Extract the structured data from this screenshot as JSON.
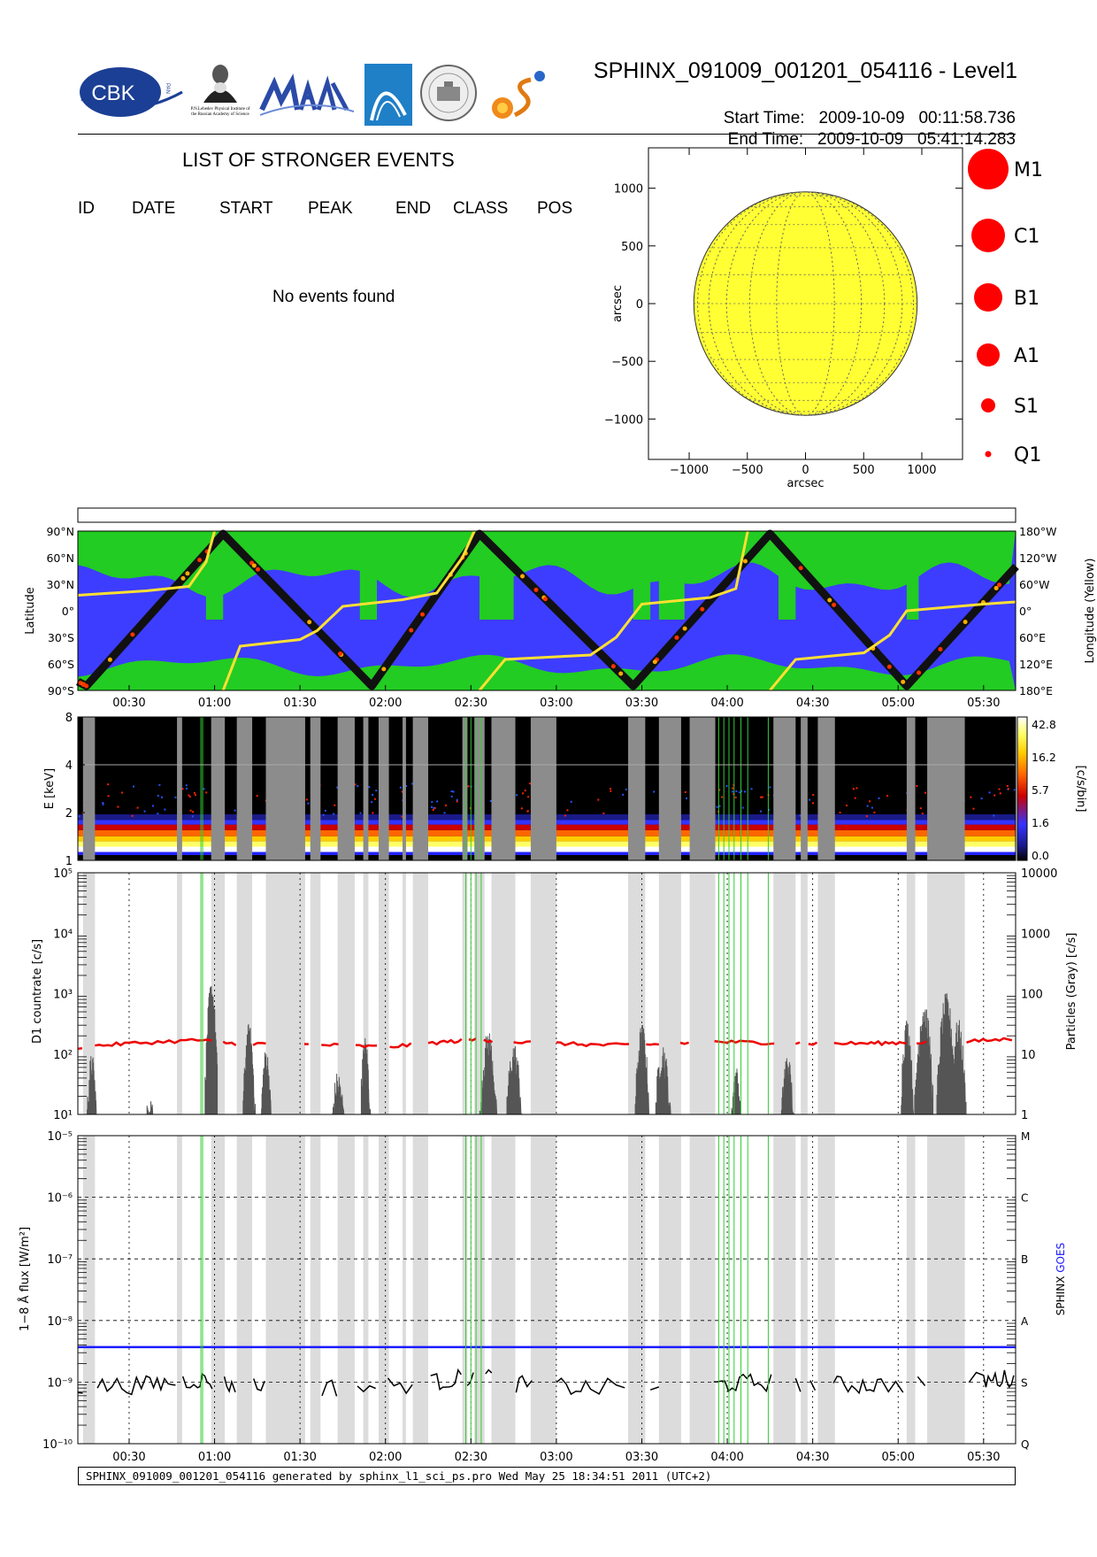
{
  "header": {
    "title": "SPHINX_091009_001201_054116 - Level1",
    "start_label": "Start Time:",
    "start_value": "2009-10-09   00:11:58.736",
    "end_label": "End Time:",
    "end_value": "2009-10-09   05:41:14.283",
    "logo_cbk": "CBK",
    "logo_cbk_sub": "PAN",
    "logo_lebedev_caption": "P.N.Lebedev Physical Institute of the Russian Academy of Science"
  },
  "events": {
    "title": "LIST OF STRONGER EVENTS",
    "columns": [
      "ID",
      "DATE",
      "START",
      "PEAK",
      "END",
      "CLASS",
      "POS"
    ],
    "empty_message": "No events found"
  },
  "colors": {
    "sun": "#ffff33",
    "event_dot": "#ff0000",
    "map_blue": "#3d3dff",
    "map_green": "#22cc22",
    "goes": "#1a1aff",
    "red_series": "#ee0000",
    "gray_band": "#dcdcdc",
    "green_line": "#33cc33"
  },
  "chart_data": [
    {
      "type": "scatter",
      "name": "solar-disk",
      "xlabel": "arcsec",
      "ylabel": "arcsec",
      "xlim": [
        -1350,
        1350
      ],
      "ylim": [
        -1350,
        1350
      ],
      "xticks": [
        -1000,
        -500,
        0,
        500,
        1000
      ],
      "yticks": [
        1000,
        500,
        0,
        -500,
        -1000
      ],
      "tick_labels_x": [
        "−1000",
        "−500",
        "0",
        "500",
        "1000"
      ],
      "tick_labels_y": [
        "1000",
        "500",
        "0",
        "−500",
        "−1000"
      ],
      "sun_radius": 960,
      "legend": [
        "M1",
        "C1",
        "B1",
        "A1",
        "S1",
        "Q1"
      ],
      "events": []
    },
    {
      "type": "line",
      "name": "orbit-latitude",
      "ylabel": "Latitude",
      "ylabel_right": "Longitude (Yellow)",
      "ylim": [
        -90,
        90
      ],
      "yticks_left": [
        "90°N",
        "60°N",
        "30°N",
        "0°",
        "30°S",
        "60°S",
        "90°S"
      ],
      "yticks_right": [
        "180°W",
        "120°W",
        "60°W",
        "0°",
        "60°E",
        "120°E",
        "180°E"
      ],
      "xticks": [
        "00:30",
        "01:00",
        "01:30",
        "02:00",
        "02:30",
        "03:00",
        "03:30",
        "04:00",
        "04:30",
        "05:00",
        "05:30"
      ],
      "xtick_hours": [
        0.5,
        1.0,
        1.5,
        2.0,
        2.5,
        3.0,
        3.5,
        4.0,
        4.5,
        5.0,
        5.5
      ],
      "xlim_hours": [
        0.1999,
        5.6873
      ],
      "latitude_track": [
        [
          0.2,
          -80
        ],
        [
          0.25,
          -85
        ],
        [
          1.05,
          87
        ],
        [
          1.92,
          -85
        ],
        [
          2.55,
          87
        ],
        [
          3.45,
          -85
        ],
        [
          4.25,
          87
        ],
        [
          5.05,
          -85
        ],
        [
          5.69,
          50
        ]
      ],
      "longitude_track": [
        [
          0.2,
          -35
        ],
        [
          0.6,
          -45
        ],
        [
          0.85,
          -55
        ],
        [
          0.95,
          -110
        ],
        [
          1.0,
          -180
        ],
        [
          1.05,
          180
        ],
        [
          1.15,
          80
        ],
        [
          1.5,
          65
        ],
        [
          1.6,
          45
        ],
        [
          1.75,
          -10
        ],
        [
          2.1,
          -25
        ],
        [
          2.3,
          -40
        ],
        [
          2.45,
          -120
        ],
        [
          2.52,
          -180
        ],
        [
          2.55,
          180
        ],
        [
          2.7,
          110
        ],
        [
          3.2,
          100
        ],
        [
          3.35,
          60
        ],
        [
          3.5,
          -15
        ],
        [
          3.9,
          -30
        ],
        [
          4.05,
          -50
        ],
        [
          4.12,
          -180
        ],
        [
          4.25,
          180
        ],
        [
          4.4,
          110
        ],
        [
          4.8,
          95
        ],
        [
          4.95,
          55
        ],
        [
          5.05,
          0
        ],
        [
          5.5,
          -15
        ],
        [
          5.69,
          -20
        ]
      ]
    },
    {
      "type": "heatmap",
      "name": "energy-spectrum",
      "ylabel": "E [keV]",
      "ylim": [
        1,
        8
      ],
      "yscale": "log",
      "yticks": [
        1,
        2,
        4,
        8
      ],
      "colorbar_label": "[c/s/bin]",
      "colorbar_ticks": [
        "42.8",
        "16.2",
        "5.7",
        "1.6",
        "0.0"
      ]
    },
    {
      "type": "line",
      "name": "d1-countrate",
      "ylabel": "D1 countrate [c/s]",
      "ylabel_right": "Particles (Gray) [c/s]",
      "yscale": "log",
      "ylim": [
        10,
        100000
      ],
      "yticks_left": [
        "10¹",
        "10²",
        "10³",
        "10⁴",
        "10⁵"
      ],
      "yticks_right": [
        "1",
        "10",
        "100",
        "1000",
        "10000"
      ],
      "series": [
        {
          "values": [
            [
              0.2,
              130
            ],
            [
              0.5,
              150
            ],
            [
              0.9,
              170
            ],
            [
              1.1,
              150
            ],
            [
              1.4,
              145
            ],
            [
              1.7,
              140
            ],
            [
              2.0,
              130
            ],
            [
              2.3,
              155
            ],
            [
              2.55,
              175
            ],
            [
              2.7,
              160
            ],
            [
              3.0,
              150
            ],
            [
              3.3,
              140
            ],
            [
              3.6,
              145
            ],
            [
              3.9,
              160
            ],
            [
              4.2,
              155
            ],
            [
              4.5,
              150
            ],
            [
              4.8,
              150
            ],
            [
              5.05,
              155
            ],
            [
              5.4,
              160
            ],
            [
              5.69,
              180
            ]
          ]
        },
        {
          "peaks": [
            [
              0.28,
              8
            ],
            [
              0.62,
              2
            ],
            [
              0.98,
              120
            ],
            [
              1.2,
              25
            ],
            [
              1.3,
              10
            ],
            [
              1.72,
              4
            ],
            [
              1.88,
              15
            ],
            [
              2.6,
              20
            ],
            [
              2.75,
              12
            ],
            [
              3.5,
              25
            ],
            [
              3.62,
              12
            ],
            [
              4.05,
              5
            ],
            [
              4.35,
              8
            ],
            [
              5.05,
              30
            ],
            [
              5.15,
              60
            ],
            [
              5.28,
              80
            ],
            [
              5.35,
              30
            ]
          ]
        }
      ]
    },
    {
      "type": "line",
      "name": "goes-flux",
      "ylabel": "1−8 Å flux [W/m²]",
      "yscale": "log",
      "ylim": [
        1e-10,
        1e-05
      ],
      "yticks_left": [
        "10⁻¹⁰",
        "10⁻⁹",
        "10⁻⁸",
        "10⁻⁷",
        "10⁻⁶",
        "10⁻⁵"
      ],
      "yticks_right": [
        "Q",
        "S",
        "A",
        "B",
        "C",
        "M"
      ],
      "legend": [
        "SPHINX",
        "GOES"
      ],
      "series": [
        {
          "name": "GOES",
          "values": [
            [
              0.2,
              3.7e-09
            ],
            [
              5.69,
              3.7e-09
            ]
          ]
        },
        {
          "name": "SPHINX",
          "values": [
            [
              0.2,
              8.5e-10
            ],
            [
              0.6,
              9e-10
            ],
            [
              0.9,
              1.1e-09
            ],
            [
              1.1,
              9e-10
            ],
            [
              1.4,
              8.5e-10
            ],
            [
              1.8,
              8e-10
            ],
            [
              2.3,
              1e-09
            ],
            [
              2.55,
              1.3e-09
            ],
            [
              2.8,
              9e-10
            ],
            [
              3.2,
              8e-10
            ],
            [
              3.9,
              9e-10
            ],
            [
              4.2,
              1e-09
            ],
            [
              4.6,
              9e-10
            ],
            [
              4.9,
              9e-10
            ],
            [
              5.5,
              1.05e-09
            ],
            [
              5.69,
              1.2e-09
            ]
          ]
        }
      ]
    }
  ],
  "overlays": {
    "gray_bands_hours": [
      [
        0.23,
        0.3
      ],
      [
        0.78,
        0.81
      ],
      [
        0.98,
        1.06
      ],
      [
        1.13,
        1.22
      ],
      [
        1.3,
        1.53
      ],
      [
        1.56,
        1.62
      ],
      [
        1.72,
        1.82
      ],
      [
        1.87,
        1.9
      ],
      [
        1.96,
        2.02
      ],
      [
        2.1,
        2.12
      ],
      [
        2.16,
        2.25
      ],
      [
        2.45,
        2.48
      ],
      [
        2.52,
        2.58
      ],
      [
        2.62,
        2.76
      ],
      [
        2.85,
        3.0
      ],
      [
        3.42,
        3.52
      ],
      [
        3.6,
        3.73
      ],
      [
        3.78,
        3.93
      ],
      [
        4.27,
        4.4
      ],
      [
        4.43,
        4.47
      ],
      [
        4.53,
        4.63
      ],
      [
        5.05,
        5.1
      ],
      [
        5.17,
        5.39
      ]
    ],
    "green_lines_hours": [
      0.92,
      0.93,
      2.47,
      2.5,
      2.53,
      2.56,
      3.95,
      3.98,
      4.01,
      4.04,
      4.08,
      4.12,
      4.24
    ]
  },
  "footer": {
    "text": "SPHINX_091009_001201_054116 generated by sphinx_l1_sci_ps.pro Wed May 25 18:34:51 2011 (UTC+2)"
  }
}
